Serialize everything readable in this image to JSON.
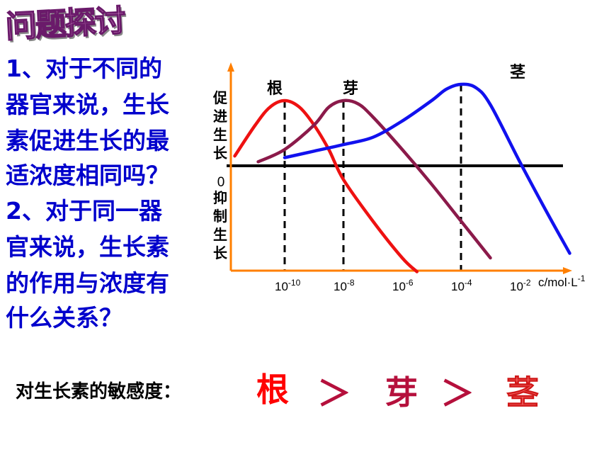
{
  "slide": {
    "title": "问题探讨",
    "question_lines": [
      "1、对于不同的",
      "器官来说，生长",
      "素促进生长的最",
      "适浓度相同吗？",
      "2、对于同一器",
      "官来说，生长素",
      "的作用与浓度有",
      "什么关系？"
    ],
    "sensitivity": {
      "prefix": "对生长素的敏感度：",
      "root": "根",
      "gt1": "＞",
      "bud": "芽",
      "gt2": "＞",
      "stem": "茎"
    }
  },
  "chart_data": {
    "type": "line",
    "xlabel": "c/mol·L-1",
    "ylabel_top": "促进生长",
    "ylabel_zero": "0",
    "ylabel_bottom": "抑制生长",
    "x_ticks": [
      "10-10",
      "10-8",
      "10-6",
      "10-4",
      "10-2"
    ],
    "x_exponents": [
      -10,
      -8,
      -6,
      -4,
      -2
    ],
    "xlim": [
      -11.8,
      -0.3
    ],
    "ylim": [
      -1,
      1
    ],
    "series": [
      {
        "name": "根",
        "color": "#ee1111",
        "optimum_exp": -10,
        "x": [
          -11.7,
          -11.0,
          -10.5,
          -10.0,
          -9.5,
          -9.0,
          -8.5,
          -8.0,
          -7.0,
          -6.0,
          -5.5
        ],
        "y": [
          0.12,
          0.5,
          0.72,
          0.8,
          0.72,
          0.5,
          0.2,
          -0.15,
          -0.6,
          -1.0,
          -1.15
        ]
      },
      {
        "name": "芽",
        "color": "#8b1a4a",
        "optimum_exp": -8,
        "x": [
          -10.9,
          -10.0,
          -9.0,
          -8.5,
          -8.0,
          -7.5,
          -7.0,
          -6.0,
          -5.0,
          -4.0,
          -3.0
        ],
        "y": [
          0.05,
          0.2,
          0.5,
          0.72,
          0.8,
          0.76,
          0.6,
          0.2,
          -0.2,
          -0.6,
          -1.0
        ]
      },
      {
        "name": "茎",
        "color": "#1111ee",
        "optimum_exp": -4,
        "x": [
          -10.0,
          -9.0,
          -8.0,
          -7.0,
          -6.0,
          -5.0,
          -4.5,
          -4.0,
          -3.5,
          -3.0,
          -2.0,
          -1.0,
          -0.3
        ],
        "y": [
          0.1,
          0.18,
          0.26,
          0.35,
          0.55,
          0.8,
          0.94,
          1.0,
          0.96,
          0.75,
          0.05,
          -0.55,
          -0.95
        ]
      }
    ]
  }
}
